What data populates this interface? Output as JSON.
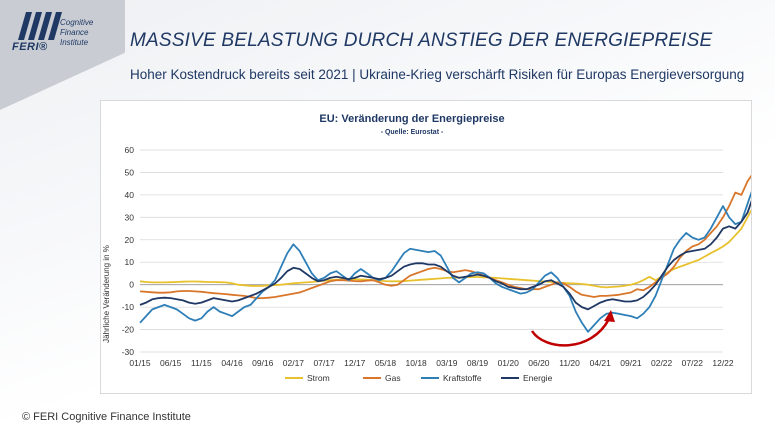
{
  "logo": {
    "brand": "FERI®",
    "lines": [
      "Cognitive",
      "Finance",
      "Institute"
    ]
  },
  "header": {
    "title": "MASSIVE BELASTUNG DURCH ANSTIEG DER ENERGIEPREISE",
    "subtitle": "Hoher Kostendruck bereits seit 2021 | Ukraine-Krieg verschärft Risiken für Europas Energieversorgung"
  },
  "footer": {
    "copyright": "© FERI Cognitive Finance Institute"
  },
  "chart_data": {
    "type": "line",
    "title": "EU: Veränderung der Energiepreise",
    "subtitle": "- Quelle: Eurostat -",
    "xlabel": "",
    "ylabel": "Jährliche Veränderung in %",
    "ylim": [
      -30,
      60
    ],
    "yticks": [
      -30,
      -20,
      -10,
      0,
      10,
      20,
      30,
      40,
      50,
      60
    ],
    "xrange": [
      "2015-01",
      "2022-12"
    ],
    "xticks": [
      "01/15",
      "06/15",
      "11/15",
      "04/16",
      "09/16",
      "02/17",
      "07/17",
      "12/17",
      "05/18",
      "10/18",
      "03/19",
      "08/19",
      "01/20",
      "06/20",
      "11/20",
      "04/21",
      "09/21",
      "02/22",
      "07/22",
      "12/22"
    ],
    "grid": "horizontal",
    "legend_position": "bottom",
    "annotation": "red curved arrow pointing up-right from 2020 trough",
    "series": [
      {
        "name": "Strom",
        "color": "#e8c12e",
        "values": [
          1.5,
          1.2,
          1.0,
          1.0,
          1.0,
          1.1,
          1.2,
          1.3,
          1.4,
          1.4,
          1.3,
          1.2,
          1.2,
          1.1,
          1.0,
          0.6,
          0.0,
          -0.3,
          -0.5,
          -0.6,
          -0.5,
          -0.3,
          -0.2,
          0.0,
          0.3,
          0.6,
          0.8,
          1.0,
          1.2,
          1.5,
          1.8,
          2.0,
          2.2,
          2.3,
          2.4,
          2.4,
          2.3,
          2.2,
          2.0,
          1.8,
          1.6,
          1.5,
          1.5,
          1.6,
          1.8,
          2.0,
          2.2,
          2.4,
          2.6,
          2.8,
          3.0,
          3.1,
          3.2,
          3.3,
          3.4,
          3.4,
          3.3,
          3.2,
          3.0,
          2.8,
          2.6,
          2.4,
          2.2,
          2.0,
          1.8,
          1.6,
          1.4,
          1.2,
          1.0,
          0.8,
          0.6,
          0.5,
          0.3,
          0.0,
          -0.5,
          -1.0,
          -1.2,
          -1.0,
          -0.8,
          -0.5,
          0.0,
          0.8,
          2.0,
          3.5,
          2.0,
          3.5,
          5.5,
          7.0,
          8.0,
          9.0,
          10.0,
          11.0,
          12.5,
          14.0,
          15.5,
          17.0,
          19.0,
          22.0,
          25.0,
          30.0,
          35.0,
          30.0,
          29.0,
          30.0
        ]
      },
      {
        "name": "Gas",
        "color": "#d9762a",
        "values": [
          -3.0,
          -3.2,
          -3.4,
          -3.6,
          -3.6,
          -3.4,
          -3.0,
          -2.8,
          -2.8,
          -3.0,
          -3.2,
          -3.5,
          -3.8,
          -4.0,
          -4.2,
          -4.5,
          -4.8,
          -5.0,
          -5.5,
          -6.0,
          -6.0,
          -5.8,
          -5.5,
          -5.0,
          -4.5,
          -4.0,
          -3.5,
          -2.5,
          -1.5,
          -0.5,
          0.5,
          1.5,
          2.0,
          2.0,
          1.8,
          1.6,
          1.5,
          1.8,
          2.0,
          1.0,
          0.0,
          -0.5,
          0.0,
          2.0,
          4.0,
          5.0,
          6.0,
          7.0,
          7.5,
          7.0,
          6.0,
          5.5,
          6.0,
          6.5,
          6.0,
          5.0,
          4.0,
          3.0,
          2.0,
          1.0,
          0.0,
          -1.0,
          -1.5,
          -2.0,
          -2.0,
          -2.0,
          -1.0,
          0.0,
          1.0,
          0.5,
          -1.0,
          -3.0,
          -4.5,
          -5.0,
          -5.5,
          -5.0,
          -5.0,
          -4.8,
          -4.5,
          -4.0,
          -3.5,
          -2.0,
          -2.5,
          -1.0,
          1.0,
          3.0,
          5.0,
          8.0,
          12.0,
          15.0,
          17.0,
          18.0,
          20.0,
          23.0,
          26.0,
          30.0,
          35.0,
          41.0,
          40.0,
          46.0,
          50.0,
          51.0,
          52.0,
          51.0
        ]
      },
      {
        "name": "Kraftstoffe",
        "color": "#2e7fb8",
        "values": [
          -17.0,
          -14.0,
          -11.0,
          -10.0,
          -9.0,
          -10.0,
          -11.0,
          -13.0,
          -15.0,
          -16.0,
          -15.0,
          -12.0,
          -10.0,
          -12.0,
          -13.0,
          -14.0,
          -12.0,
          -10.0,
          -9.0,
          -6.0,
          -3.0,
          -1.0,
          2.0,
          8.0,
          14.0,
          18.0,
          15.0,
          10.0,
          5.0,
          2.0,
          3.0,
          5.0,
          6.0,
          4.0,
          2.0,
          5.0,
          7.0,
          5.0,
          3.0,
          2.0,
          3.0,
          6.0,
          10.0,
          14.0,
          16.0,
          15.5,
          15.0,
          14.5,
          15.0,
          13.0,
          8.0,
          3.0,
          1.0,
          3.0,
          5.0,
          5.5,
          5.0,
          3.0,
          0.5,
          -1.0,
          -2.0,
          -3.0,
          -4.0,
          -3.5,
          -2.0,
          1.0,
          4.0,
          5.5,
          3.0,
          -1.0,
          -5.0,
          -12.0,
          -17.0,
          -21.0,
          -18.0,
          -15.0,
          -13.0,
          -12.5,
          -13.0,
          -13.5,
          -14.0,
          -15.0,
          -13.0,
          -10.0,
          -5.0,
          2.0,
          9.0,
          16.0,
          20.0,
          23.0,
          21.0,
          20.0,
          21.0,
          25.0,
          30.0,
          35.0,
          30.0,
          27.0,
          28.0,
          36.0,
          44.0,
          36.0,
          38.0,
          45.0
        ]
      },
      {
        "name": "Energie",
        "color": "#1f3864",
        "values": [
          -9.0,
          -8.0,
          -6.5,
          -6.0,
          -5.8,
          -6.0,
          -6.5,
          -7.0,
          -8.0,
          -8.5,
          -8.0,
          -7.0,
          -6.0,
          -6.5,
          -7.0,
          -7.5,
          -7.0,
          -6.0,
          -5.0,
          -4.0,
          -2.5,
          -1.0,
          0.5,
          3.0,
          6.0,
          7.5,
          7.0,
          5.0,
          3.0,
          1.5,
          2.0,
          3.0,
          3.5,
          3.0,
          2.5,
          3.0,
          4.0,
          3.5,
          3.0,
          2.5,
          3.0,
          4.0,
          6.0,
          8.0,
          9.0,
          9.5,
          9.5,
          9.0,
          9.0,
          8.0,
          6.0,
          4.0,
          3.0,
          3.5,
          4.0,
          4.5,
          4.0,
          3.0,
          1.5,
          0.5,
          -1.0,
          -1.5,
          -2.0,
          -2.0,
          -1.0,
          0.0,
          1.5,
          2.0,
          0.5,
          -1.0,
          -4.0,
          -8.0,
          -10.0,
          -11.0,
          -9.5,
          -8.0,
          -7.0,
          -6.5,
          -7.0,
          -7.5,
          -7.5,
          -7.0,
          -5.5,
          -3.0,
          0.0,
          4.0,
          8.0,
          11.0,
          13.0,
          14.5,
          15.0,
          15.5,
          16.0,
          18.0,
          21.0,
          25.0,
          26.0,
          25.0,
          28.0,
          32.0,
          40.0,
          35.0,
          37.0,
          41.0
        ]
      }
    ]
  }
}
